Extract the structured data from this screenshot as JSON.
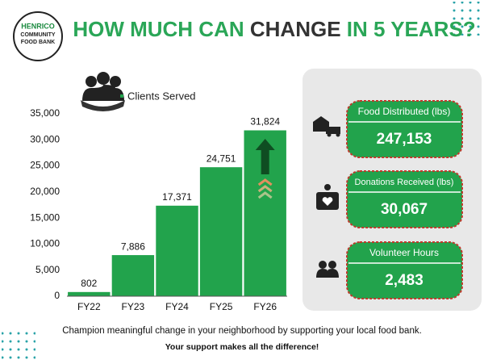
{
  "header": {
    "logo": [
      "HENRICO",
      "COMMUNITY",
      "FOOD BANK"
    ],
    "title": [
      "HOW MUCH CAN",
      "CHANGE",
      "IN 5 YEARS?"
    ]
  },
  "chart_data": {
    "type": "bar",
    "title": "Clients Served",
    "categories": [
      "FY22",
      "FY23",
      "FY24",
      "FY25",
      "FY26"
    ],
    "values": [
      802,
      7886,
      17371,
      24751,
      31824
    ],
    "value_labels": [
      "802",
      "7,886",
      "17,371",
      "24,751",
      "31,824"
    ],
    "color": "#22a34c",
    "ylim": [
      0,
      35000
    ],
    "yticks": [
      0,
      {
        "value": 5000,
        "label": "5,000"
      },
      {
        "value": 10000,
        "label": "10,000"
      },
      {
        "value": 15000,
        "label": "15,000"
      },
      {
        "value": 20000,
        "label": "20,000"
      },
      {
        "value": 25000,
        "label": "25,000"
      },
      {
        "value": 30000,
        "label": "30,000"
      },
      {
        "value": 35000,
        "label": "35,000"
      }
    ],
    "grid": false
  },
  "stats": [
    {
      "label": "Food Distributed (lbs)",
      "value": "247,153"
    },
    {
      "label": "Donations Received (lbs)",
      "value": "30,067"
    },
    {
      "label": "Volunteer Hours",
      "value": "2,483"
    }
  ],
  "footer": [
    "Champion meaningful change in your neighborhood by supporting your local food bank.",
    "Your support makes all the difference!"
  ]
}
